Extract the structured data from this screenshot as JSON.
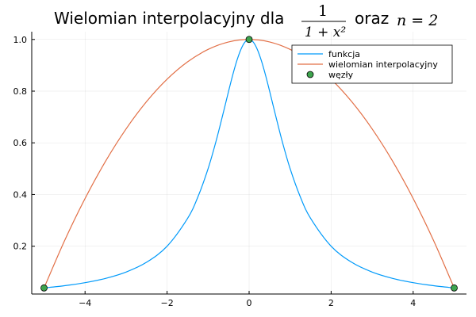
{
  "chart_data": {
    "type": "line",
    "title": {
      "prefix": "Wielomian interpolacyjny dla",
      "fraction_numerator": "1",
      "fraction_denominator": "1 + x²",
      "connector": "oraz",
      "n_expression": "n = 2"
    },
    "xlabel": "",
    "ylabel": "",
    "xlim": [
      -5.3,
      5.3
    ],
    "ylim": [
      0.015,
      1.03
    ],
    "xticks": [
      -4,
      -2,
      0,
      2,
      4
    ],
    "xtick_labels": [
      "−4",
      "−2",
      "0",
      "2",
      "4"
    ],
    "yticks": [
      0.2,
      0.4,
      0.6,
      0.8,
      1.0
    ],
    "ytick_labels": [
      "0.2",
      "0.4",
      "0.6",
      "0.8",
      "1.0"
    ],
    "grid": true,
    "legend_position": "top-right",
    "series": [
      {
        "name": "funkcja",
        "kind": "line",
        "color": "#009AFA",
        "x": [
          -5,
          -4.5,
          -4,
          -3.5,
          -3,
          -2.5,
          -2,
          -1.5,
          -1.25,
          -1,
          -0.8,
          -0.6,
          -0.5,
          -0.4,
          -0.3,
          -0.2,
          -0.1,
          0,
          0.1,
          0.2,
          0.3,
          0.4,
          0.5,
          0.6,
          0.8,
          1,
          1.25,
          1.5,
          2,
          2.5,
          3,
          3.5,
          4,
          4.5,
          5
        ],
        "y": [
          0.0385,
          0.0471,
          0.0588,
          0.0755,
          0.1,
          0.1379,
          0.2,
          0.3077,
          0.3902,
          0.5,
          0.6098,
          0.7353,
          0.8,
          0.8621,
          0.9174,
          0.9615,
          0.9901,
          1.0,
          0.9901,
          0.9615,
          0.9174,
          0.8621,
          0.8,
          0.7353,
          0.6098,
          0.5,
          0.3902,
          0.3077,
          0.2,
          0.1379,
          0.1,
          0.0755,
          0.0588,
          0.0471,
          0.0385
        ]
      },
      {
        "name": "wielomian interpolacyjny",
        "kind": "line",
        "color": "#E26F46",
        "x": [
          -5,
          -4.5,
          -4,
          -3.5,
          -3,
          -2.5,
          -2,
          -1.5,
          -1,
          -0.5,
          0,
          0.5,
          1,
          1.5,
          2,
          2.5,
          3,
          3.5,
          4,
          4.5,
          5
        ],
        "y": [
          0.0385,
          0.2212,
          0.3846,
          0.5288,
          0.6538,
          0.7596,
          0.8462,
          0.9135,
          0.9615,
          0.9904,
          1.0,
          0.9904,
          0.9615,
          0.9135,
          0.8462,
          0.7596,
          0.6538,
          0.5288,
          0.3846,
          0.2212,
          0.0385
        ]
      },
      {
        "name": "węzły",
        "kind": "scatter",
        "color": "#3EA44E",
        "x": [
          -5,
          0,
          5
        ],
        "y": [
          0.0385,
          1.0,
          0.0385
        ]
      }
    ]
  }
}
